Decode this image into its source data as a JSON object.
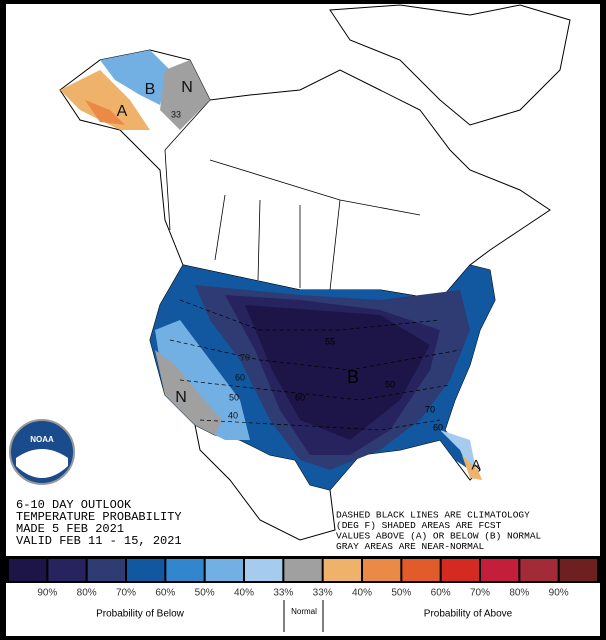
{
  "map": {
    "info_lines": [
      "6-10 DAY OUTLOOK",
      "TEMPERATURE PROBABILITY",
      "MADE  5 FEB 2021",
      "VALID  FEB 11 - 15, 2021"
    ],
    "note_lines": [
      "DASHED BLACK LINES ARE CLIMATOLOGY",
      "(DEG F) SHADED AREAS ARE FCST",
      "VALUES ABOVE (A) OR BELOW (B) NORMAL",
      "GRAY AREAS ARE NEAR-NORMAL"
    ],
    "logo_text": "NOAA",
    "region_labels": [
      "B",
      "N",
      "A",
      "33",
      "B",
      "N",
      "A",
      "70",
      "60",
      "50",
      "40",
      "50",
      "60",
      "70",
      "60",
      "55"
    ]
  },
  "legend": {
    "colors": [
      "#1d1547",
      "#26235e",
      "#2e3c73",
      "#1158a0",
      "#3286cd",
      "#72b0e4",
      "#a5cbee",
      "#a0a0a0",
      "#efb26b",
      "#ea8a46",
      "#e25b2a",
      "#d42a22",
      "#c31f3a",
      "#a32b38",
      "#6e1f1f"
    ],
    "labels": [
      "90%",
      "80%",
      "70%",
      "60%",
      "50%",
      "40%",
      "33%",
      "33%",
      "40%",
      "50%",
      "60%",
      "70%",
      "80%",
      "90%"
    ],
    "below_title": "Probability of Below",
    "normal_title": "Normal",
    "above_title": "Probability of Above"
  }
}
